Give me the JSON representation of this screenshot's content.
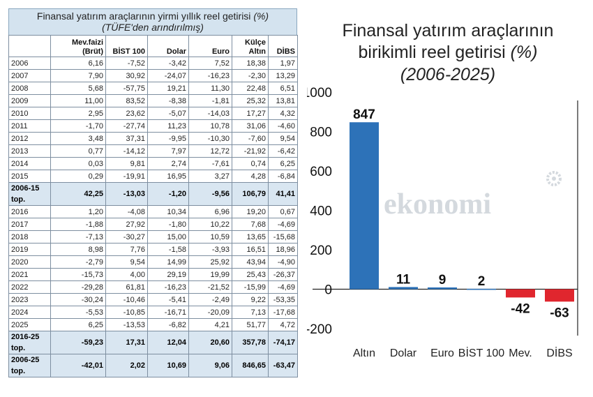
{
  "table": {
    "title": "Finansal yatırım araçlarının yirmi yıllık reel getirisi",
    "title_unit": "(%)",
    "subtitle": "(TÜFE'den arındırılmış)",
    "headers": [
      "",
      "Mev.faizi\n(Brüt)",
      "BİST 100",
      "Dolar",
      "Euro",
      "Külçe\nAltın",
      "DİBS"
    ],
    "rows": [
      {
        "cells": [
          "2006",
          "6,16",
          "-7,52",
          "-3,42",
          "7,52",
          "18,38",
          "1,97"
        ],
        "total": false
      },
      {
        "cells": [
          "2007",
          "7,90",
          "30,92",
          "-24,07",
          "-16,23",
          "-2,30",
          "13,29"
        ],
        "total": false
      },
      {
        "cells": [
          "2008",
          "5,68",
          "-57,75",
          "19,21",
          "11,30",
          "22,48",
          "6,51"
        ],
        "total": false
      },
      {
        "cells": [
          "2009",
          "11,00",
          "83,52",
          "-8,38",
          "-1,81",
          "25,32",
          "13,81"
        ],
        "total": false
      },
      {
        "cells": [
          "2010",
          "2,95",
          "23,62",
          "-5,07",
          "-14,03",
          "17,27",
          "4,32"
        ],
        "total": false
      },
      {
        "cells": [
          "2011",
          "-1,70",
          "-27,74",
          "11,23",
          "10,78",
          "31,06",
          "-4,60"
        ],
        "total": false
      },
      {
        "cells": [
          "2012",
          "3,48",
          "37,31",
          "-9,95",
          "-10,30",
          "-7,60",
          "9,54"
        ],
        "total": false
      },
      {
        "cells": [
          "2013",
          "0,77",
          "-14,12",
          "7,97",
          "12,72",
          "-21,92",
          "-6,42"
        ],
        "total": false
      },
      {
        "cells": [
          "2014",
          "0,03",
          "9,81",
          "2,74",
          "-7,61",
          "0,74",
          "6,25"
        ],
        "total": false
      },
      {
        "cells": [
          "2015",
          "0,29",
          "-19,91",
          "16,95",
          "3,27",
          "4,28",
          "-6,84"
        ],
        "total": false
      },
      {
        "cells": [
          "2006-15 top.",
          "42,25",
          "-13,03",
          "-1,20",
          "-9,56",
          "106,79",
          "41,41"
        ],
        "total": true
      },
      {
        "cells": [
          "2016",
          "1,20",
          "-4,08",
          "10,34",
          "6,96",
          "19,20",
          "0,67"
        ],
        "total": false
      },
      {
        "cells": [
          "2017",
          "-1,88",
          "27,92",
          "-1,80",
          "10,22",
          "7,68",
          "-4,69"
        ],
        "total": false
      },
      {
        "cells": [
          "2018",
          "-7,13",
          "-30,27",
          "15,00",
          "10,59",
          "13,65",
          "-15,68"
        ],
        "total": false
      },
      {
        "cells": [
          "2019",
          "8,98",
          "7,76",
          "-1,58",
          "-3,93",
          "16,51",
          "18,96"
        ],
        "total": false
      },
      {
        "cells": [
          "2020",
          "-2,79",
          "9,54",
          "14,99",
          "25,92",
          "43,94",
          "-4,90"
        ],
        "total": false
      },
      {
        "cells": [
          "2021",
          "-15,73",
          "4,00",
          "29,19",
          "19,99",
          "25,43",
          "-26,37"
        ],
        "total": false
      },
      {
        "cells": [
          "2022",
          "-29,28",
          "61,81",
          "-16,23",
          "-21,52",
          "-15,99",
          "-4,69"
        ],
        "total": false
      },
      {
        "cells": [
          "2023",
          "-30,24",
          "-10,46",
          "-5,41",
          "-2,49",
          "9,22",
          "-53,35"
        ],
        "total": false
      },
      {
        "cells": [
          "2024",
          "-5,53",
          "-10,85",
          "-16,71",
          "-20,09",
          "7,13",
          "-17,68"
        ],
        "total": false
      },
      {
        "cells": [
          "2025",
          "6,25",
          "-13,53",
          "-6,82",
          "4,21",
          "51,77",
          "4,72"
        ],
        "total": false
      },
      {
        "cells": [
          "2016-25 top.",
          "-59,23",
          "17,31",
          "12,04",
          "20,60",
          "357,78",
          "-74,17"
        ],
        "total": true
      },
      {
        "cells": [
          "2006-25 top.",
          "-42,01",
          "2,02",
          "10,69",
          "9,06",
          "846,65",
          "-63,47"
        ],
        "total": true
      }
    ]
  },
  "chart_data": {
    "type": "bar",
    "title_line1": "Finansal yatırım araçlarının",
    "title_line2": "birikimli reel getirisi",
    "title_unit": "(%)",
    "subtitle": "(2006-2025)",
    "categories": [
      "Altın",
      "Dolar",
      "Euro",
      "BİST 100",
      "Mev.",
      "DİBS"
    ],
    "values": [
      847,
      11,
      9,
      2,
      -42,
      -63
    ],
    "value_labels": [
      "847",
      "11",
      "9",
      "2",
      "-42",
      "-63"
    ],
    "ylim": [
      -200,
      1000
    ],
    "yticks": [
      1000,
      800,
      600,
      400,
      200,
      0,
      -200
    ],
    "ytick_labels": [
      "1000",
      "800",
      "600",
      "400",
      "200",
      "0",
      "-200"
    ],
    "colors": {
      "positive": "#2d72b8",
      "negative": "#e0262e"
    },
    "grid": false,
    "watermark": "ekonomi"
  }
}
